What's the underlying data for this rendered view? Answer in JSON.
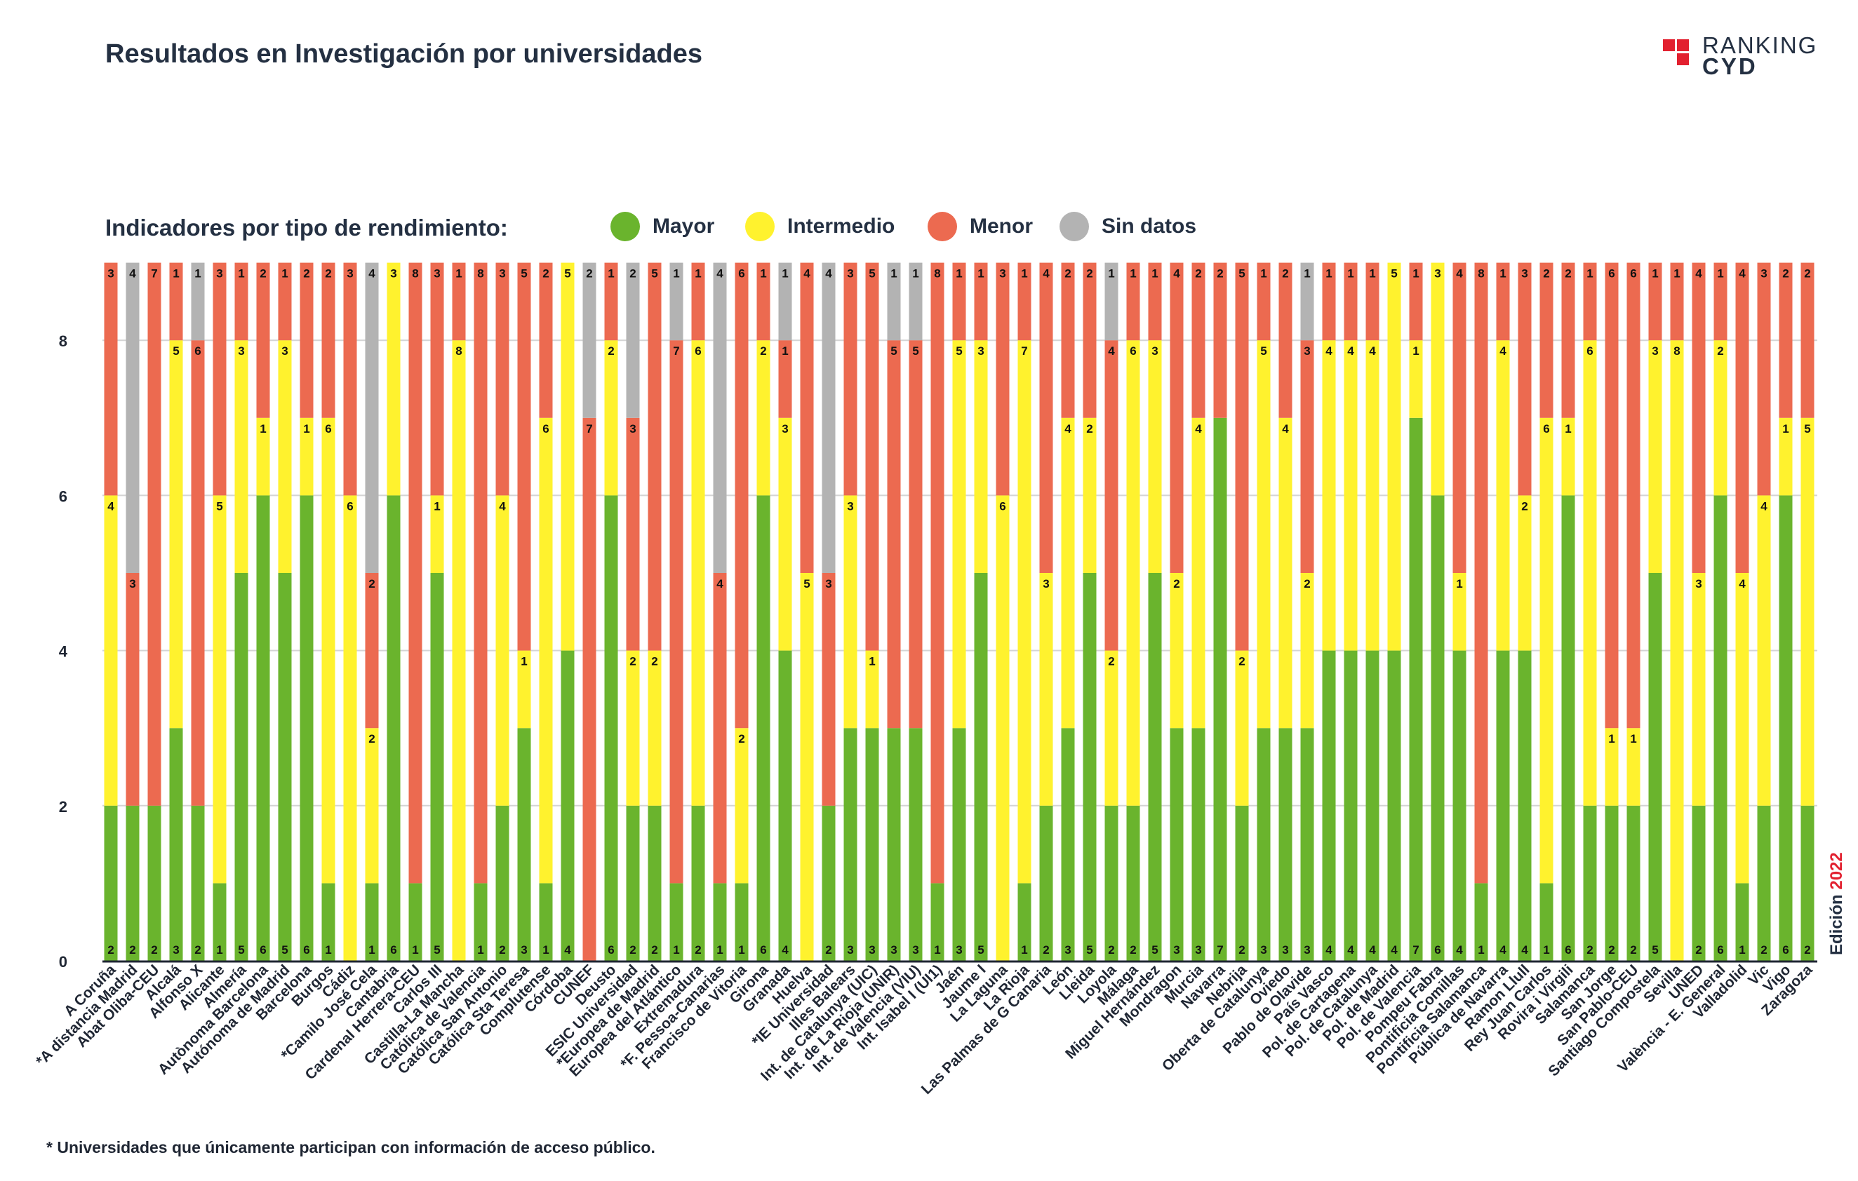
{
  "title": "Resultados en Investigación por universidades",
  "logo": {
    "line1": "RANKING",
    "line2": "CYD"
  },
  "legend": {
    "title": "Indicadores por tipo de rendimiento:",
    "items": [
      {
        "label": "Mayor",
        "color": "#6ab42d"
      },
      {
        "label": "Intermedio",
        "color": "#fff22e"
      },
      {
        "label": "Menor",
        "color": "#ec6a50"
      },
      {
        "label": "Sin datos",
        "color": "#b3b3b3"
      }
    ]
  },
  "edition": {
    "label": "Edición",
    "year": "2022"
  },
  "footnote": "* Universidades que únicamente participan con información de acceso público.",
  "chart_data": {
    "type": "bar",
    "stacked": true,
    "ylim": [
      0,
      9
    ],
    "yticks": [
      0,
      2,
      4,
      6,
      8
    ],
    "grid": true,
    "legend_position": "top",
    "categories": [
      "A Coruña",
      "*A distancia Madrid",
      "Abat Oliba-CEU",
      "Alcalá",
      "Alfonso X",
      "Alicante",
      "Almería",
      "Autònoma Barcelona",
      "Autónoma de Madrid",
      "Barcelona",
      "Burgos",
      "Cádiz",
      "*Camilo José Cela",
      "Cantabria",
      "Cardenal Herrera-CEU",
      "Carlos III",
      "Castilla-La Mancha",
      "Católica de Valencia",
      "Católica San Antonio",
      "Católica Sta Teresa",
      "Complutense",
      "Córdoba",
      "CUNEF",
      "Deusto",
      "ESIC Universidad",
      "*Europea de Madrid",
      "Europea del Atlántico",
      "Extremadura",
      "*F. Pessoa-Canarias",
      "Francisco de Vitoria",
      "Girona",
      "Granada",
      "Huelva",
      "*IE Universidad",
      "Illes Balears",
      "Int. de Catalunya (UIC)",
      "Int. de La Rioja (UNIR)",
      "Int. de Valencia (VIU)",
      "Int. Isabel I (UI1)",
      "Jaén",
      "Jaume I",
      "La Laguna",
      "La Rioja",
      "Las Palmas de G Canaria",
      "León",
      "Lleida",
      "Loyola",
      "Málaga",
      "Miguel Hernández",
      "Mondragon",
      "Murcia",
      "Navarra",
      "Nebrija",
      "Oberta de Catalunya",
      "Oviedo",
      "Pablo de Olavide",
      "País Vasco",
      "Pol. de Cartagena",
      "Pol. de Catalunya",
      "Pol. de Madrid",
      "Pol. de Valencia",
      "Pompeu Fabra",
      "Pontificia Comillas",
      "Pontificia Salamanca",
      "Pública de Navarra",
      "Ramon Llull",
      "Rey Juan Carlos",
      "Rovira i Virgili",
      "Salamanca",
      "San Jorge",
      "San Pablo-CEU",
      "Santiago Compostela",
      "Sevilla",
      "UNED",
      "València - E. General",
      "Valladolid",
      "Vic",
      "Vigo",
      "Zaragoza"
    ],
    "series": [
      {
        "name": "Mayor",
        "color": "#6ab42d",
        "values": [
          2,
          2,
          2,
          3,
          2,
          1,
          5,
          6,
          5,
          6,
          1,
          0,
          1,
          6,
          1,
          5,
          0,
          1,
          2,
          3,
          1,
          4,
          0,
          6,
          2,
          2,
          1,
          2,
          1,
          1,
          6,
          4,
          0,
          2,
          3,
          3,
          3,
          3,
          1,
          3,
          5,
          0,
          1,
          2,
          3,
          5,
          2,
          2,
          5,
          3,
          3,
          7,
          2,
          3,
          3,
          3,
          4,
          4,
          4,
          4,
          7,
          6,
          4,
          1,
          4,
          4,
          1,
          6,
          2,
          2,
          2,
          5,
          0,
          2,
          6,
          1,
          2,
          6,
          2
        ]
      },
      {
        "name": "Intermedio",
        "color": "#fff22e",
        "values": [
          4,
          0,
          0,
          5,
          0,
          5,
          3,
          1,
          3,
          1,
          6,
          6,
          2,
          3,
          0,
          1,
          8,
          0,
          4,
          1,
          6,
          5,
          0,
          2,
          2,
          2,
          0,
          6,
          0,
          2,
          2,
          3,
          5,
          0,
          3,
          1,
          0,
          0,
          0,
          5,
          3,
          6,
          7,
          3,
          4,
          2,
          2,
          6,
          3,
          2,
          4,
          0,
          2,
          5,
          4,
          2,
          4,
          4,
          4,
          5,
          1,
          3,
          1,
          0,
          4,
          2,
          6,
          1,
          6,
          1,
          1,
          3,
          8,
          3,
          2,
          4,
          4,
          1,
          5
        ]
      },
      {
        "name": "Menor",
        "color": "#ec6a50",
        "values": [
          3,
          3,
          7,
          1,
          6,
          3,
          1,
          2,
          1,
          2,
          2,
          3,
          2,
          0,
          8,
          3,
          1,
          8,
          3,
          5,
          2,
          0,
          7,
          1,
          3,
          5,
          7,
          1,
          4,
          6,
          1,
          1,
          4,
          3,
          3,
          5,
          5,
          5,
          8,
          1,
          1,
          3,
          1,
          4,
          2,
          2,
          4,
          1,
          1,
          4,
          2,
          2,
          5,
          1,
          2,
          3,
          1,
          1,
          1,
          0,
          1,
          0,
          4,
          8,
          1,
          3,
          2,
          2,
          1,
          6,
          6,
          1,
          1,
          4,
          1,
          4,
          3,
          2,
          2
        ]
      },
      {
        "name": "Sin datos",
        "color": "#b3b3b3",
        "values": [
          0,
          4,
          0,
          0,
          1,
          0,
          0,
          0,
          0,
          0,
          0,
          0,
          4,
          0,
          0,
          0,
          0,
          0,
          0,
          0,
          0,
          0,
          2,
          0,
          2,
          0,
          1,
          0,
          4,
          0,
          0,
          1,
          0,
          4,
          0,
          0,
          1,
          1,
          0,
          0,
          0,
          0,
          0,
          0,
          0,
          0,
          1,
          0,
          0,
          0,
          0,
          0,
          0,
          0,
          0,
          1,
          0,
          0,
          0,
          0,
          0,
          0,
          0,
          0,
          0,
          0,
          0,
          0,
          0,
          0,
          0,
          0,
          0,
          0,
          0,
          0,
          0,
          0,
          0
        ]
      }
    ]
  }
}
